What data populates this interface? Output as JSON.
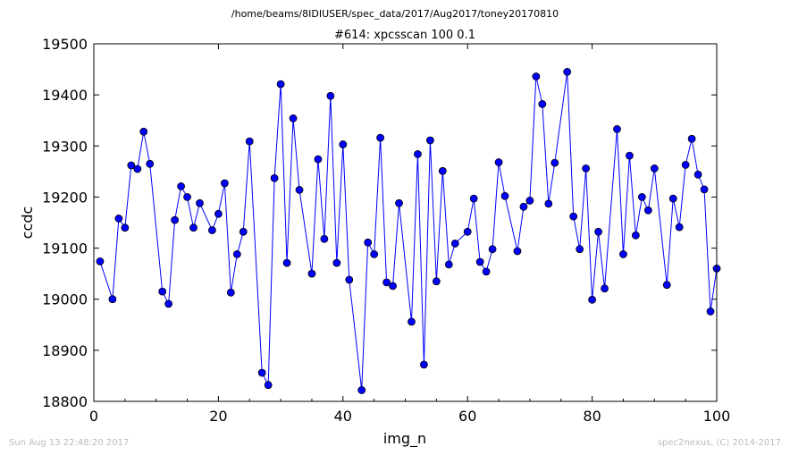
{
  "page": {
    "path_title": "/home/beams/8IDIUSER/spec_data/2017/Aug2017/toney20170810",
    "timestamp": "Sun Aug 13 22:48:20 2017",
    "credit": "spec2nexus, (C) 2014-2017"
  },
  "chart_data": {
    "type": "line",
    "title": "#614: xpcsscan 100 0.1",
    "xlabel": "img_n",
    "ylabel": "ccdc",
    "xlim": [
      0,
      100
    ],
    "ylim": [
      18800,
      19500
    ],
    "xticks": [
      "0",
      "20",
      "40",
      "60",
      "80",
      "100"
    ],
    "yticks": [
      "18800",
      "18900",
      "19000",
      "19100",
      "19200",
      "19300",
      "19400",
      "19500"
    ],
    "grid": false,
    "line_color": "#0000ff",
    "marker": "circle",
    "series": [
      {
        "points": [
          [
            1,
            19074
          ],
          [
            3,
            19000
          ],
          [
            4,
            19158
          ],
          [
            5,
            19140
          ],
          [
            6,
            19262
          ],
          [
            7,
            19255
          ],
          [
            8,
            19328
          ],
          [
            9,
            19265
          ],
          [
            11,
            19015
          ],
          [
            12,
            18991
          ],
          [
            13,
            19155
          ],
          [
            14,
            19221
          ],
          [
            15,
            19200
          ],
          [
            16,
            19140
          ],
          [
            17,
            19188
          ],
          [
            19,
            19135
          ],
          [
            20,
            19167
          ],
          [
            21,
            19227
          ],
          [
            22,
            19013
          ],
          [
            23,
            19088
          ],
          [
            24,
            19132
          ],
          [
            25,
            19309
          ],
          [
            27,
            18856
          ],
          [
            28,
            18832
          ],
          [
            29,
            19237
          ],
          [
            30,
            19421
          ],
          [
            31,
            19071
          ],
          [
            32,
            19354
          ],
          [
            33,
            19214
          ],
          [
            35,
            19050
          ],
          [
            36,
            19274
          ],
          [
            37,
            19118
          ],
          [
            38,
            19398
          ],
          [
            39,
            19071
          ],
          [
            40,
            19303
          ],
          [
            41,
            19038
          ],
          [
            43,
            18822
          ],
          [
            44,
            19111
          ],
          [
            45,
            19088
          ],
          [
            46,
            19316
          ],
          [
            47,
            19033
          ],
          [
            48,
            19026
          ],
          [
            49,
            19188
          ],
          [
            51,
            18956
          ],
          [
            52,
            19284
          ],
          [
            53,
            18872
          ],
          [
            54,
            19311
          ],
          [
            55,
            19035
          ],
          [
            56,
            19251
          ],
          [
            57,
            19068
          ],
          [
            58,
            19109
          ],
          [
            60,
            19132
          ],
          [
            61,
            19197
          ],
          [
            62,
            19073
          ],
          [
            63,
            19054
          ],
          [
            64,
            19098
          ],
          [
            65,
            19268
          ],
          [
            66,
            19202
          ],
          [
            68,
            19094
          ],
          [
            69,
            19181
          ],
          [
            70,
            19193
          ],
          [
            71,
            19436
          ],
          [
            72,
            19382
          ],
          [
            73,
            19187
          ],
          [
            74,
            19267
          ],
          [
            76,
            19445
          ],
          [
            77,
            19162
          ],
          [
            78,
            19098
          ],
          [
            79,
            19256
          ],
          [
            80,
            18999
          ],
          [
            81,
            19132
          ],
          [
            82,
            19021
          ],
          [
            84,
            19333
          ],
          [
            85,
            19088
          ],
          [
            86,
            19281
          ],
          [
            87,
            19125
          ],
          [
            88,
            19200
          ],
          [
            89,
            19174
          ],
          [
            90,
            19256
          ],
          [
            92,
            19028
          ],
          [
            93,
            19197
          ],
          [
            94,
            19141
          ],
          [
            95,
            19263
          ],
          [
            96,
            19314
          ],
          [
            97,
            19244
          ],
          [
            98,
            19215
          ],
          [
            99,
            18976
          ],
          [
            100,
            19060
          ]
        ]
      }
    ]
  }
}
